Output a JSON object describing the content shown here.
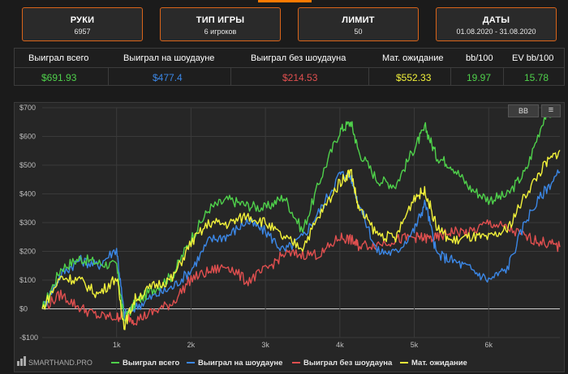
{
  "cards": [
    {
      "title": "РУКИ",
      "value": "6957"
    },
    {
      "title": "ТИП ИГРЫ",
      "value": "6 игроков"
    },
    {
      "title": "ЛИМИТ",
      "value": "50"
    },
    {
      "title": "ДАТЫ",
      "value": "01.08.2020 - 31.08.2020"
    }
  ],
  "stats": {
    "headers": [
      "Выиграл всего",
      "Выиграл на шоудауне",
      "Выиграл без шоудауна",
      "Мат. ожидание",
      "bb/100",
      "EV bb/100"
    ],
    "values": [
      "$691.93",
      "$477.4",
      "$214.53",
      "$552.33",
      "19.97",
      "15.78"
    ]
  },
  "toolbar": {
    "bb_label": "BB",
    "menu_icon": "≡"
  },
  "brand": "SMARTHAND.PRO",
  "colors": {
    "green": "#4fd14b",
    "blue": "#3b87e6",
    "red": "#e04f4f",
    "yellow": "#f2f23a",
    "accent": "#d9641a"
  },
  "chart_data": {
    "type": "line",
    "title": "",
    "xlabel": "",
    "ylabel": "",
    "xlim": [
      0,
      6957
    ],
    "ylim": [
      -100,
      700
    ],
    "x_ticks": [
      1000,
      2000,
      3000,
      4000,
      5000,
      6000
    ],
    "x_tick_labels": [
      "1k",
      "2k",
      "3k",
      "4k",
      "5k",
      "6k"
    ],
    "y_ticks": [
      -100,
      0,
      100,
      200,
      300,
      400,
      500,
      600,
      700
    ],
    "y_tick_labels": [
      "-$100",
      "$0",
      "$100",
      "$200",
      "$300",
      "$400",
      "$500",
      "$600",
      "$700"
    ],
    "grid": true,
    "legend_position": "bottom",
    "x": [
      0,
      250,
      500,
      750,
      1000,
      1100,
      1250,
      1500,
      1750,
      2000,
      2250,
      2500,
      2750,
      3000,
      3250,
      3500,
      3750,
      4000,
      4150,
      4250,
      4500,
      4750,
      5000,
      5150,
      5300,
      5500,
      5750,
      6000,
      6250,
      6500,
      6750,
      6957
    ],
    "series": [
      {
        "name": "Выиграл всего",
        "values": [
          0,
          140,
          175,
          160,
          150,
          -40,
          20,
          70,
          115,
          245,
          350,
          380,
          360,
          350,
          390,
          270,
          460,
          620,
          650,
          550,
          450,
          430,
          560,
          630,
          530,
          500,
          420,
          380,
          395,
          480,
          670,
          692
        ]
      },
      {
        "name": "Выиграл на шоудауне",
        "values": [
          0,
          120,
          170,
          150,
          210,
          -20,
          5,
          45,
          75,
          135,
          240,
          255,
          305,
          270,
          200,
          250,
          350,
          470,
          460,
          370,
          200,
          195,
          275,
          370,
          190,
          170,
          140,
          100,
          140,
          310,
          410,
          477
        ]
      },
      {
        "name": "Выиграл без шоудауна",
        "values": [
          0,
          50,
          5,
          -25,
          -30,
          -20,
          -40,
          -10,
          20,
          105,
          130,
          150,
          95,
          135,
          190,
          190,
          190,
          250,
          240,
          220,
          225,
          240,
          250,
          245,
          245,
          270,
          265,
          300,
          280,
          250,
          230,
          215
        ]
      },
      {
        "name": "Мат. ожидание",
        "values": [
          0,
          110,
          100,
          50,
          110,
          -60,
          35,
          80,
          105,
          230,
          300,
          295,
          325,
          300,
          245,
          215,
          335,
          440,
          480,
          350,
          260,
          245,
          390,
          410,
          285,
          235,
          250,
          245,
          275,
          400,
          500,
          552
        ]
      }
    ]
  }
}
